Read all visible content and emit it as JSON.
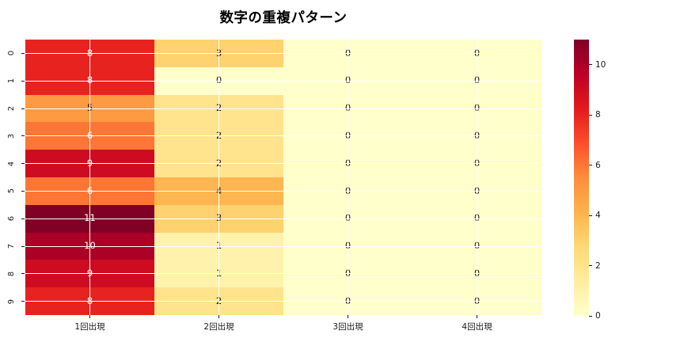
{
  "chart_data": {
    "type": "heatmap",
    "title": "数字の重複パターン",
    "row_labels": [
      "0",
      "1",
      "2",
      "3",
      "4",
      "5",
      "6",
      "7",
      "8",
      "9"
    ],
    "col_labels": [
      "1回出現",
      "2回出現",
      "3回出現",
      "4回出現"
    ],
    "values": [
      [
        8,
        3,
        0,
        0
      ],
      [
        8,
        0,
        0,
        0
      ],
      [
        5,
        2,
        0,
        0
      ],
      [
        6,
        2,
        0,
        0
      ],
      [
        9,
        2,
        0,
        0
      ],
      [
        6,
        4,
        0,
        0
      ],
      [
        11,
        3,
        0,
        0
      ],
      [
        10,
        1,
        0,
        0
      ],
      [
        9,
        1,
        0,
        0
      ],
      [
        8,
        2,
        0,
        0
      ]
    ],
    "vmin": 0,
    "vmax": 11,
    "colormap": "YlOrRd",
    "colormap_stops": [
      "#ffffcc",
      "#ffeda0",
      "#fed976",
      "#feb24c",
      "#fd8d3c",
      "#fc4e2a",
      "#e31a1c",
      "#bd0026",
      "#800026"
    ],
    "colorbar_ticks": [
      0,
      2,
      4,
      6,
      8,
      10
    ],
    "grid": true,
    "grid_color": "#ffffff",
    "annotation_light_color": "#ffffff",
    "annotation_dark_color": "#1a1a1a",
    "axis_text_color": "#1a1a1a",
    "background": "#ffffff"
  }
}
